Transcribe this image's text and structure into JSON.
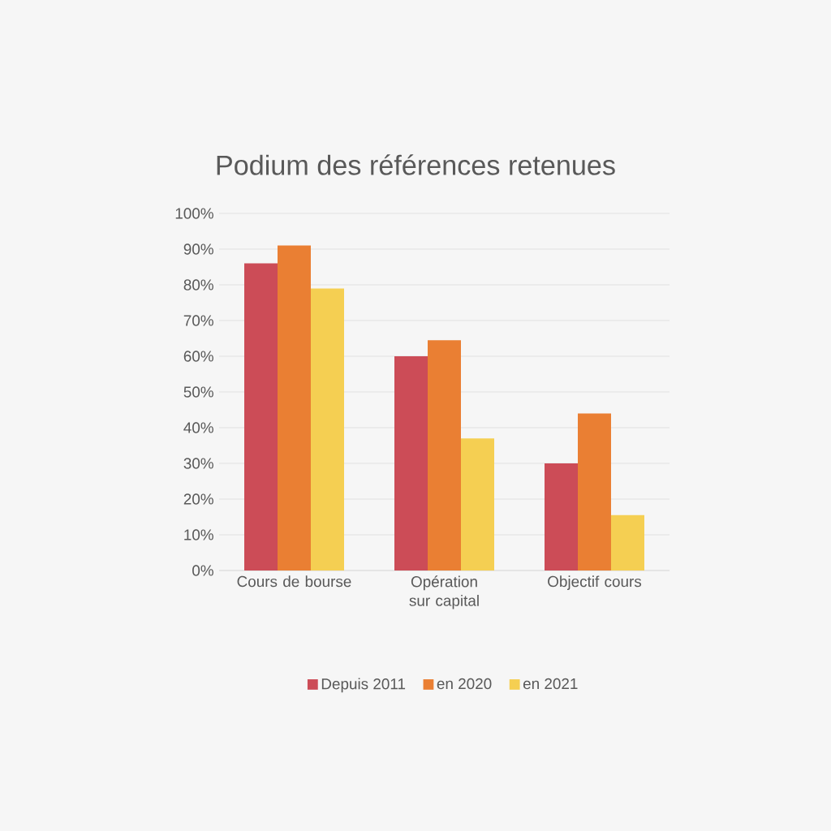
{
  "chart_data": {
    "type": "bar",
    "title": "Podium des références retenues",
    "categories": [
      "Cours de bourse",
      "Opération sur capital",
      "Objectif cours"
    ],
    "series": [
      {
        "name": "Depuis 2011",
        "color": "#cc4c57",
        "values": [
          86,
          60,
          30
        ]
      },
      {
        "name": "en 2020",
        "color": "#ea7f33",
        "values": [
          91,
          64.5,
          44
        ]
      },
      {
        "name": "en 2021",
        "color": "#f5cf52",
        "values": [
          79,
          37,
          15.5
        ]
      }
    ],
    "ylim": [
      0,
      100
    ],
    "yticks": [
      {
        "value": 0,
        "label": "0%"
      },
      {
        "value": 10,
        "label": "10%"
      },
      {
        "value": 20,
        "label": "20%"
      },
      {
        "value": 30,
        "label": "30%"
      },
      {
        "value": 40,
        "label": "40%"
      },
      {
        "value": 50,
        "label": "50%"
      },
      {
        "value": 60,
        "label": "60%"
      },
      {
        "value": 70,
        "label": "70%"
      },
      {
        "value": 80,
        "label": "80%"
      },
      {
        "value": 90,
        "label": "90%"
      },
      {
        "value": 100,
        "label": "100%"
      }
    ],
    "grid": "y",
    "legend": "bottom"
  }
}
